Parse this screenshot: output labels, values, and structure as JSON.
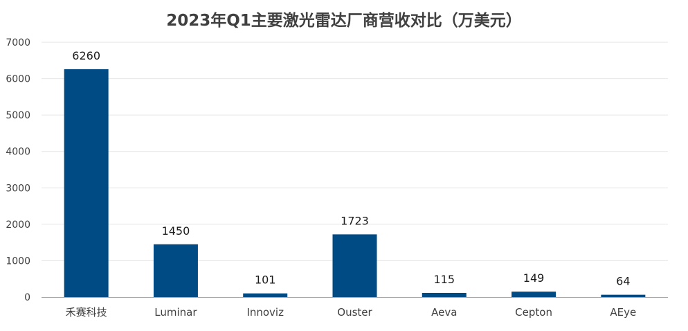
{
  "chart_data": {
    "type": "bar",
    "title": "2023年Q1主要激光雷达厂商营收对比（万美元）",
    "categories": [
      "禾赛科技",
      "Luminar",
      "Innoviz",
      "Ouster",
      "Aeva",
      "Cepton",
      "AEye"
    ],
    "values": [
      6260,
      1450,
      101,
      1723,
      115,
      149,
      64
    ],
    "ylim": [
      0,
      7000
    ],
    "yticks": [
      0,
      1000,
      2000,
      3000,
      4000,
      5000,
      6000,
      7000
    ],
    "grid": true,
    "data_labels": true,
    "bar_color": "#004b84",
    "xlabel": "",
    "ylabel": ""
  }
}
